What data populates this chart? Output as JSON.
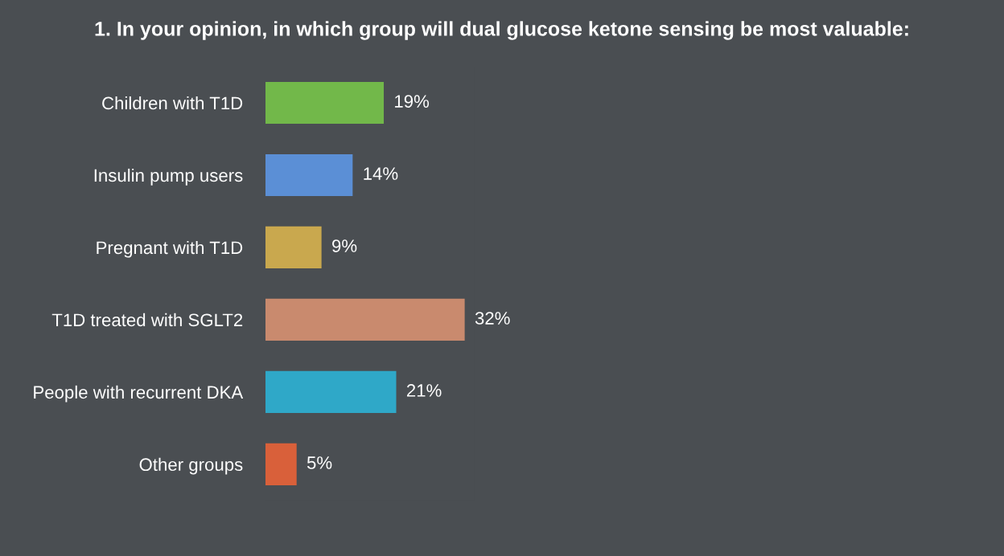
{
  "chart_data": {
    "type": "bar",
    "orientation": "horizontal",
    "title": "1. In your opinion, in which group will dual glucose ketone sensing be most valuable:",
    "categories": [
      "Children with T1D",
      "Insulin pump users",
      "Pregnant with T1D",
      "T1D treated with SGLT2",
      "People with recurrent DKA",
      "Other groups"
    ],
    "values": [
      19,
      14,
      9,
      32,
      21,
      5
    ],
    "colors": [
      "#72b84a",
      "#5b8fd6",
      "#c9a84e",
      "#c98a6e",
      "#2fa8c8",
      "#d9603a"
    ],
    "value_labels": [
      "19%",
      "14%",
      "9%",
      "32%",
      "21%",
      "5%"
    ]
  }
}
